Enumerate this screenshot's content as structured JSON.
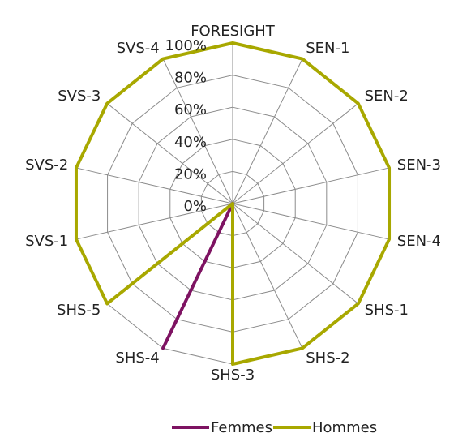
{
  "chart_data": {
    "type": "radar",
    "categories": [
      "FORESIGHT",
      "SEN-1",
      "SEN-2",
      "SEN-3",
      "SEN-4",
      "SHS-1",
      "SHS-2",
      "SHS-3",
      "SHS-4",
      "SHS-5",
      "SVS-1",
      "SVS-2",
      "SVS-3",
      "SVS-4"
    ],
    "series": [
      {
        "name": "Femmes",
        "color": "#7e1362",
        "values": [
          0,
          0,
          0,
          0,
          0,
          0,
          0,
          0,
          100,
          0,
          0,
          0,
          0,
          0
        ]
      },
      {
        "name": "Hommes",
        "color": "#a8a800",
        "values": [
          100,
          100,
          100,
          100,
          100,
          100,
          100,
          100,
          0,
          100,
          100,
          100,
          100,
          100
        ]
      }
    ],
    "ylim": [
      0,
      100
    ],
    "yticks": [
      {
        "value": 0,
        "label": "0%"
      },
      {
        "value": 20,
        "label": "20%"
      },
      {
        "value": 40,
        "label": "40%"
      },
      {
        "value": 60,
        "label": "60%"
      },
      {
        "value": 80,
        "label": "80%"
      },
      {
        "value": 100,
        "label": "100%"
      }
    ],
    "grid": true,
    "legend": "bottom"
  }
}
